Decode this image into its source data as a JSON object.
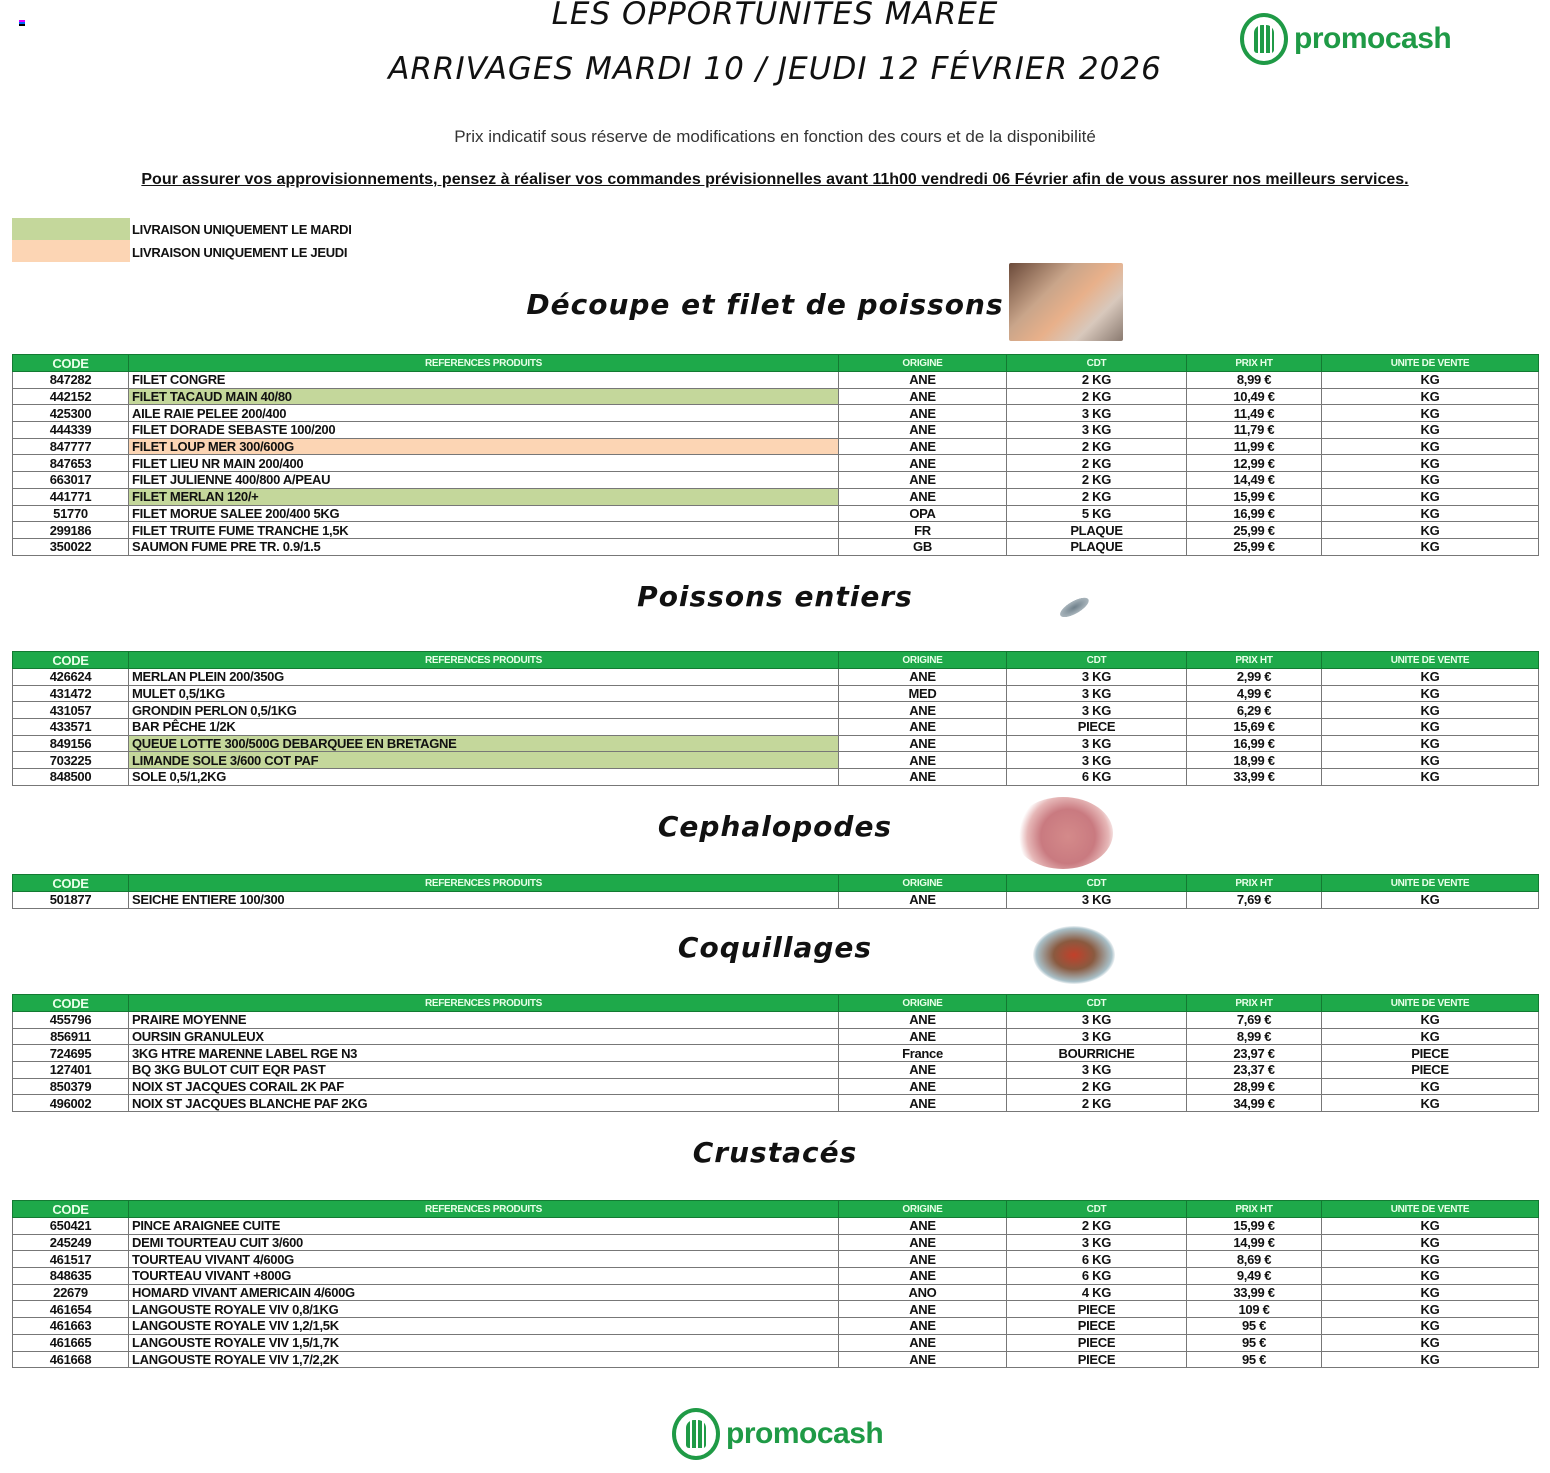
{
  "header": {
    "title_line1": "LES OPPORTUNITES MAREE",
    "title_line2": "ARRIVAGES MARDI 10 / JEUDI 12 FÉVRIER 2026",
    "brand": "promocash",
    "subtitle": "Prix indicatif sous réserve de modifications en fonction des cours et de la disponibilité",
    "notice": "Pour assurer vos approvisionnements, pensez à réaliser vos commandes prévisionnelles avant 11h00 vendredi 06 Février afin de vous assurer nos meilleurs services."
  },
  "legend": [
    {
      "label": "LIVRAISON UNIQUEMENT LE MARDI",
      "color": "#c4d79b"
    },
    {
      "label": "LIVRAISON UNIQUEMENT LE JEUDI",
      "color": "#fcd5b4"
    }
  ],
  "columns": [
    "CODE",
    "REFERENCES PRODUITS",
    "ORIGINE",
    "CDT",
    "PRIX HT",
    "UNITE DE VENTE"
  ],
  "colors": {
    "header_green": "#1ea94a",
    "brand_green": "#1f9a46",
    "mardi": "#c4d79b",
    "jeudi": "#fcd5b4"
  },
  "sections": [
    {
      "title": "Découpe et filet de poissons",
      "image": "fish-fillet-photo",
      "rows": [
        [
          "847282",
          "FILET CONGRE",
          "ANE",
          "2 KG",
          "8,99 €",
          "KG",
          ""
        ],
        [
          "442152",
          "FILET TACAUD MAIN 40/80",
          "ANE",
          "2 KG",
          "10,49 €",
          "KG",
          "mardi"
        ],
        [
          "425300",
          "AILE RAIE PELEE 200/400",
          "ANE",
          "3 KG",
          "11,49 €",
          "KG",
          ""
        ],
        [
          "444339",
          "FILET DORADE SEBASTE 100/200",
          "ANE",
          "3 KG",
          "11,79 €",
          "KG",
          ""
        ],
        [
          "847777",
          "FILET LOUP MER 300/600G",
          "ANE",
          "2 KG",
          "11,99 €",
          "KG",
          "jeudi"
        ],
        [
          "847653",
          "FILET LIEU NR MAIN 200/400",
          "ANE",
          "2 KG",
          "12,99 €",
          "KG",
          ""
        ],
        [
          "663017",
          "FILET JULIENNE 400/800 A/PEAU",
          "ANE",
          "2 KG",
          "14,49 €",
          "KG",
          ""
        ],
        [
          "441771",
          "FILET MERLAN 120/+",
          "ANE",
          "2 KG",
          "15,99 €",
          "KG",
          "mardi"
        ],
        [
          "51770",
          "FILET MORUE SALEE 200/400 5KG",
          "OPA",
          "5 KG",
          "16,99 €",
          "KG",
          ""
        ],
        [
          "299186",
          "FILET TRUITE FUME TRANCHE 1,5K",
          "FR",
          "PLAQUE",
          "25,99 €",
          "KG",
          ""
        ],
        [
          "350022",
          "SAUMON FUME PRE TR. 0.9/1.5",
          "GB",
          "PLAQUE",
          "25,99 €",
          "KG",
          ""
        ]
      ]
    },
    {
      "title": "Poissons entiers",
      "image": "whole-fish-photo",
      "rows": [
        [
          "426624",
          "MERLAN PLEIN 200/350G",
          "ANE",
          "3 KG",
          "2,99 €",
          "KG",
          ""
        ],
        [
          "431472",
          "MULET 0,5/1KG",
          "MED",
          "3 KG",
          "4,99 €",
          "KG",
          ""
        ],
        [
          "431057",
          "GRONDIN PERLON 0,5/1KG",
          "ANE",
          "3 KG",
          "6,29 €",
          "KG",
          ""
        ],
        [
          "433571",
          "BAR PÊCHE 1/2K",
          "ANE",
          "PIECE",
          "15,69 €",
          "KG",
          ""
        ],
        [
          "849156",
          "QUEUE LOTTE 300/500G DEBARQUEE EN BRETAGNE",
          "ANE",
          "3 KG",
          "16,99 €",
          "KG",
          "mardi"
        ],
        [
          "703225",
          "LIMANDE SOLE 3/600 COT PAF",
          "ANE",
          "3 KG",
          "18,99 €",
          "KG",
          "mardi"
        ],
        [
          "848500",
          "SOLE 0,5/1,2KG",
          "ANE",
          "6 KG",
          "33,99 €",
          "KG",
          ""
        ]
      ]
    },
    {
      "title": "Cephalopodes",
      "image": "octopus-photo",
      "rows": [
        [
          "501877",
          "SEICHE ENTIERE 100/300",
          "ANE",
          "3 KG",
          "7,69 €",
          "KG",
          ""
        ]
      ]
    },
    {
      "title": "Coquillages",
      "image": "seafood-platter-photo",
      "rows": [
        [
          "455796",
          "PRAIRE MOYENNE",
          "ANE",
          "3 KG",
          "7,69 €",
          "KG",
          ""
        ],
        [
          "856911",
          "OURSIN GRANULEUX",
          "ANE",
          "3 KG",
          "8,99 €",
          "KG",
          ""
        ],
        [
          "724695",
          "3KG HTRE MARENNE LABEL RGE N3",
          "France",
          "BOURRICHE",
          "23,97 €",
          "PIECE",
          ""
        ],
        [
          "127401",
          "BQ 3KG BULOT CUIT EQR PAST",
          "ANE",
          "3 KG",
          "23,37 €",
          "PIECE",
          ""
        ],
        [
          "850379",
          "NOIX ST JACQUES CORAIL 2K PAF",
          "ANE",
          "2 KG",
          "28,99 €",
          "KG",
          ""
        ],
        [
          "496002",
          "NOIX ST JACQUES BLANCHE PAF 2KG",
          "ANE",
          "2 KG",
          "34,99 €",
          "KG",
          ""
        ]
      ]
    },
    {
      "title": "Crustacés",
      "rows": [
        [
          "650421",
          "PINCE ARAIGNEE CUITE",
          "ANE",
          "2 KG",
          "15,99 €",
          "KG",
          ""
        ],
        [
          "245249",
          "DEMI TOURTEAU CUIT 3/600",
          "ANE",
          "3 KG",
          "14,99 €",
          "KG",
          ""
        ],
        [
          "461517",
          "TOURTEAU VIVANT 4/600G",
          "ANE",
          "6 KG",
          "8,69 €",
          "KG",
          ""
        ],
        [
          "848635",
          "TOURTEAU VIVANT +800G",
          "ANE",
          "6 KG",
          "9,49 €",
          "KG",
          ""
        ],
        [
          "22679",
          "HOMARD VIVANT AMERICAIN 4/600G",
          "ANO",
          "4 KG",
          "33,99 €",
          "KG",
          ""
        ],
        [
          "461654",
          "LANGOUSTE ROYALE VIV 0,8/1KG",
          "ANE",
          "PIECE",
          "109 €",
          "KG",
          ""
        ],
        [
          "461663",
          "LANGOUSTE ROYALE VIV 1,2/1,5K",
          "ANE",
          "PIECE",
          "95 €",
          "KG",
          ""
        ],
        [
          "461665",
          "LANGOUSTE ROYALE VIV 1,5/1,7K",
          "ANE",
          "PIECE",
          "95 €",
          "KG",
          ""
        ],
        [
          "461668",
          "LANGOUSTE ROYALE VIV 1,7/2,2K",
          "ANE",
          "PIECE",
          "95 €",
          "KG",
          ""
        ]
      ]
    }
  ],
  "footer": {
    "brand": "promocash"
  }
}
